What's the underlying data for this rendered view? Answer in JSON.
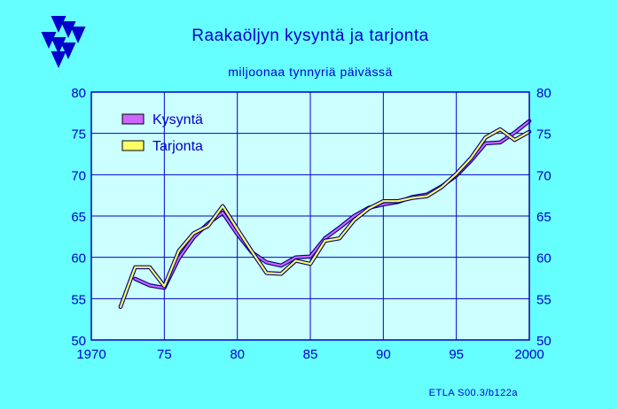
{
  "header": {
    "title": "Raakaöljyn kysyntä ja tarjonta",
    "subtitle": "miljoonaa tynnyriä päivässä"
  },
  "footer": {
    "credit": "ETLA S00.3/b122a"
  },
  "logo": {
    "name": "etla-logo-icon",
    "color": "#0000cc"
  },
  "chart_data": {
    "type": "line",
    "xlim": [
      1970,
      2000
    ],
    "ylim": [
      50,
      80
    ],
    "x_ticks": [
      1970,
      1975,
      1980,
      1985,
      1990,
      1995,
      2000
    ],
    "x_tick_labels": [
      "1970",
      "75",
      "80",
      "85",
      "90",
      "95",
      "2000"
    ],
    "y_ticks": [
      50,
      55,
      60,
      65,
      70,
      75,
      80
    ],
    "y_tick_labels_left": [
      "50",
      "55",
      "60",
      "65",
      "70",
      "75",
      "80"
    ],
    "y_tick_labels_right": [
      "50",
      "55",
      "60",
      "65",
      "70",
      "75",
      "80"
    ],
    "grid": true,
    "legend": "top-left",
    "forecast_band": [
      1999.9,
      2000.5
    ],
    "colors": {
      "background": "#66ffff",
      "plot_background": "#ccffff",
      "grid": "#0000cc",
      "forecast": "#ddffbb",
      "demand": "#cc66ff",
      "supply": "#ffff66",
      "outline": "#000080"
    },
    "series": [
      {
        "name": "Kysyntä",
        "color": "#cc66ff",
        "x": [
          1973,
          1974,
          1975,
          1976,
          1977,
          1978,
          1979,
          1980,
          1981,
          1982,
          1983,
          1984,
          1985,
          1986,
          1987,
          1988,
          1989,
          1990,
          1991,
          1992,
          1993,
          1994,
          1995,
          1996,
          1997,
          1998,
          1999,
          2000
        ],
        "y": [
          57.4,
          56.6,
          56.3,
          59.9,
          62.4,
          64.1,
          65.4,
          62.8,
          60.6,
          59.4,
          59.0,
          60.0,
          60.1,
          62.3,
          63.6,
          65.0,
          66.0,
          66.4,
          66.7,
          67.3,
          67.6,
          68.6,
          69.9,
          71.7,
          73.8,
          73.9,
          75.1,
          76.5
        ]
      },
      {
        "name": "Tarjonta",
        "color": "#ffff66",
        "x": [
          1972,
          1973,
          1974,
          1975,
          1976,
          1977,
          1978,
          1979,
          1980,
          1981,
          1982,
          1983,
          1984,
          1985,
          1986,
          1987,
          1988,
          1989,
          1990,
          1991,
          1992,
          1993,
          1994,
          1995,
          1996,
          1997,
          1998,
          1999,
          2000
        ],
        "y": [
          54.0,
          58.8,
          58.8,
          56.5,
          60.8,
          62.9,
          63.8,
          66.2,
          63.4,
          60.7,
          58.1,
          58.0,
          59.6,
          59.2,
          62.0,
          62.3,
          64.5,
          65.9,
          66.8,
          66.8,
          67.2,
          67.4,
          68.5,
          70.1,
          72.0,
          74.5,
          75.5,
          74.2,
          75.2
        ]
      }
    ]
  }
}
